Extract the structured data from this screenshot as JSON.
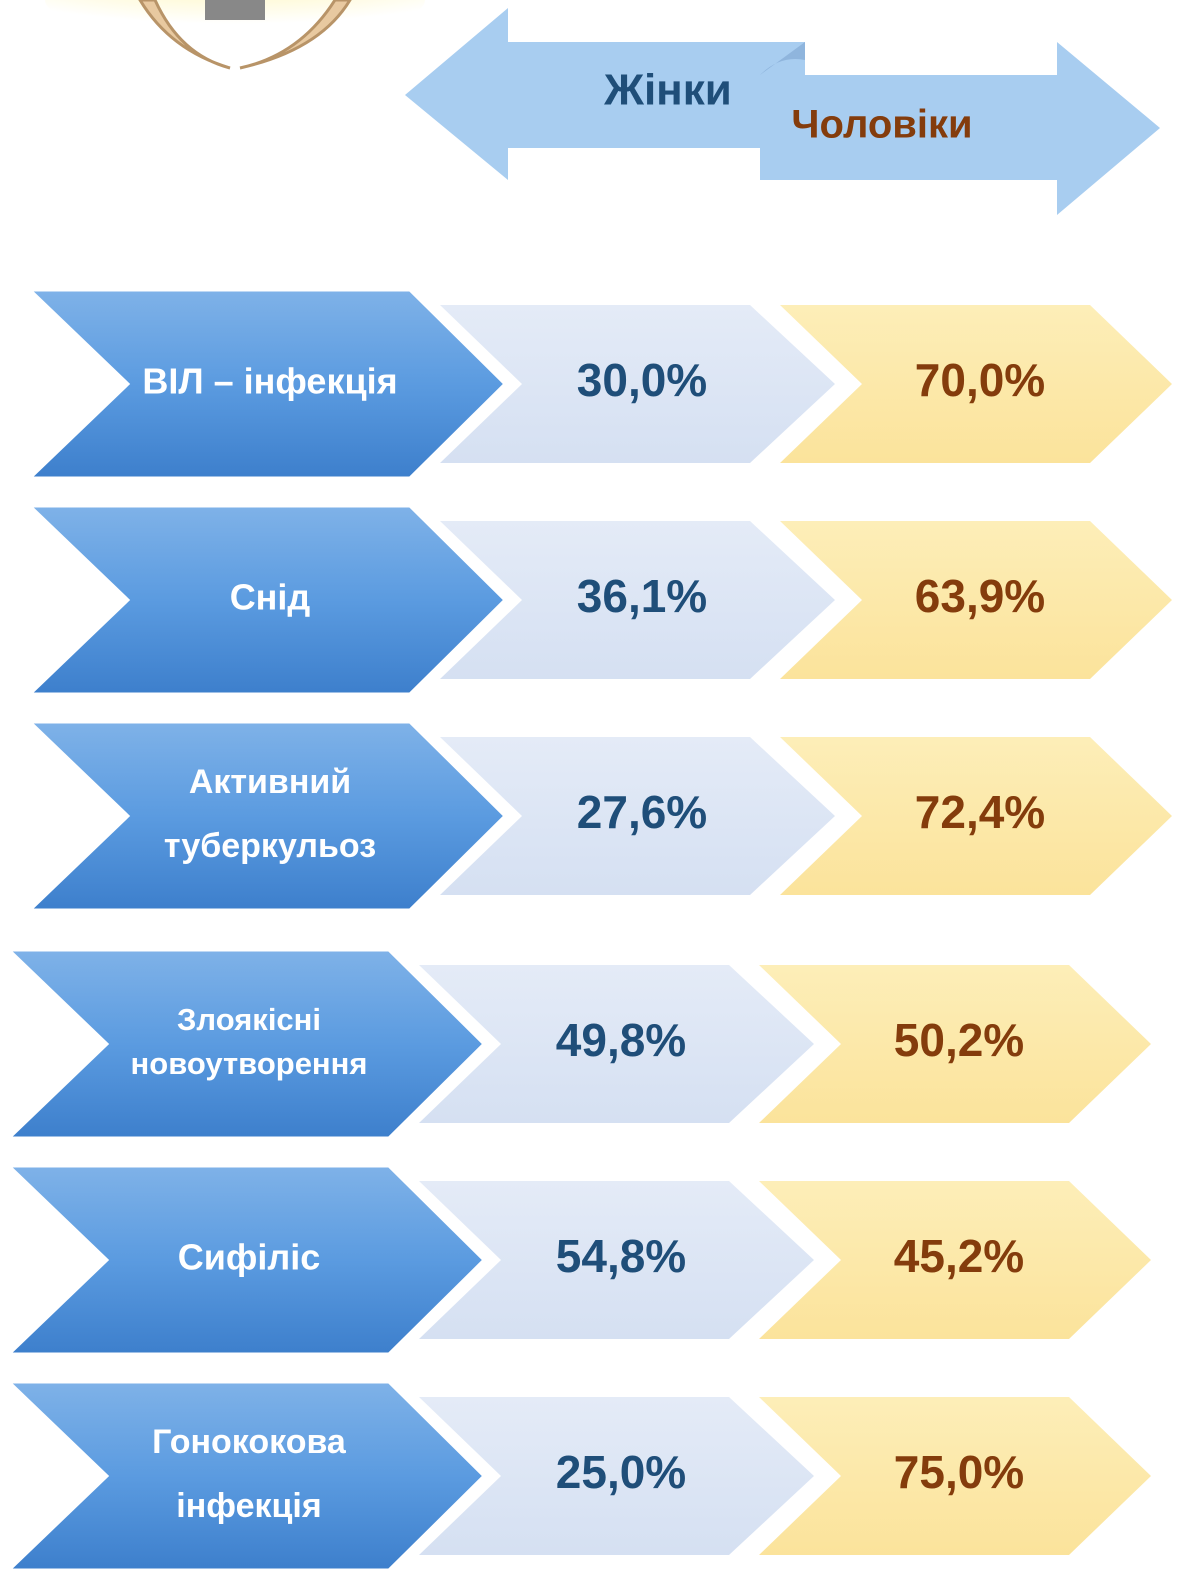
{
  "header": {
    "women": "Жінки",
    "men": "Чоловіки"
  },
  "rows": [
    {
      "label": [
        "ВІЛ – інфекція"
      ],
      "women": "30,0%",
      "men": "70,0%"
    },
    {
      "label": [
        "Снід"
      ],
      "women": "36,1%",
      "men": "63,9%"
    },
    {
      "label": [
        "Активний",
        "туберкульоз"
      ],
      "women": "27,6%",
      "men": "72,4%"
    },
    {
      "label": [
        "Злоякісні",
        "новоутворення"
      ],
      "women": "49,8%",
      "men": "50,2%"
    },
    {
      "label": [
        "Сифіліс"
      ],
      "women": "54,8%",
      "men": "45,2%"
    },
    {
      "label": [
        "Гонококова",
        "інфекція"
      ],
      "women": "25,0%",
      "men": "75,0%"
    }
  ]
}
